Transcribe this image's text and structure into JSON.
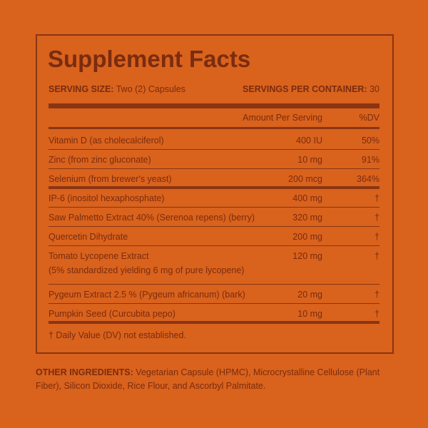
{
  "label": {
    "title": "Supplement Facts",
    "serving_size_label": "SERVING SIZE:",
    "serving_size": "Two (2) Capsules",
    "servings_label": "SERVINGS PER CONTAINER:",
    "servings": "30",
    "header": {
      "amount": "Amount Per Serving",
      "dv": "%DV"
    },
    "groups": [
      {
        "rows": [
          {
            "name": "Vitamin D (as cholecalciferol)",
            "amount": "400 IU",
            "dv": "50%"
          },
          {
            "name": "Zinc (from zinc gluconate)",
            "amount": "10 mg",
            "dv": "91%"
          },
          {
            "name": "Selenium (from brewer's yeast)",
            "amount": "200 mcg",
            "dv": "364%"
          }
        ]
      },
      {
        "rows": [
          {
            "name": "IP-6 (inositol hexaphosphate)",
            "amount": "400 mg",
            "dv": "†"
          },
          {
            "name": "Saw Palmetto Extract 40% (Serenoa repens) (berry)",
            "amount": "320 mg",
            "dv": "†"
          },
          {
            "name": "Quercetin Dihydrate",
            "amount": "200 mg",
            "dv": "†"
          },
          {
            "name": "Tomato Lycopene Extract",
            "detail": "(5% standardized yielding 6 mg of pure lycopene)",
            "amount": "120 mg",
            "dv": "†"
          },
          {
            "name": "Pygeum Extract 2.5 % (Pygeum africanum) (bark)",
            "amount": "20 mg",
            "dv": "†"
          },
          {
            "name": "Pumpkin Seed (Curcubita pepo)",
            "amount": "10 mg",
            "dv": "†"
          }
        ]
      }
    ],
    "footnote": "† Daily Value (DV) not established.",
    "other_label": "OTHER INGREDIENTS:",
    "other": "Vegetarian Capsule (HPMC), Microcrystalline Cellulose (Plant Fiber), Silicon Dioxide, Rice Flour, and Ascorbyl Palmitate."
  }
}
